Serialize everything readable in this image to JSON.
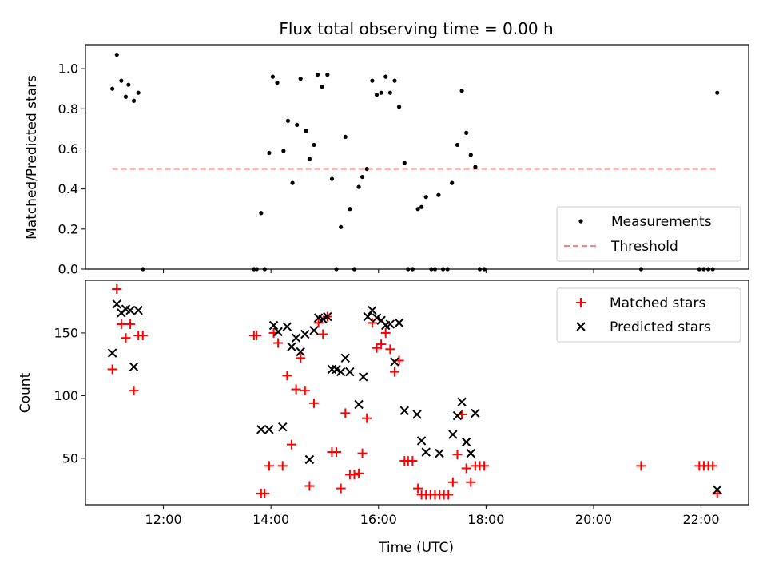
{
  "chart_data": [
    {
      "type": "scatter",
      "title": "Flux total observing time = 0.00 h",
      "xlabel": "",
      "ylabel": "Matched/Predicted stars",
      "xlim": [
        "10:33",
        "22:53"
      ],
      "ylim": [
        0.0,
        1.12
      ],
      "xticks": [
        "12:00",
        "14:00",
        "16:00",
        "18:00",
        "20:00",
        "22:00"
      ],
      "yticks": [
        "0.0",
        "0.2",
        "0.4",
        "0.6",
        "0.8",
        "1.0"
      ],
      "legend": {
        "position": "bottom-right",
        "entries": [
          "Measurements",
          "Threshold"
        ]
      },
      "colors": {
        "Measurements": "#000000",
        "Threshold": "#ff7f7f"
      },
      "series": [
        {
          "name": "Measurements",
          "points": [
            [
              "11:03",
              0.9
            ],
            [
              "11:08",
              1.07
            ],
            [
              "11:13",
              0.94
            ],
            [
              "11:18",
              0.86
            ],
            [
              "11:21",
              0.92
            ],
            [
              "11:27",
              0.84
            ],
            [
              "11:32",
              0.88
            ],
            [
              "11:37",
              0.0
            ],
            [
              "13:41",
              0.0
            ],
            [
              "13:44",
              0.0
            ],
            [
              "13:49",
              0.28
            ],
            [
              "13:53",
              0.0
            ],
            [
              "13:58",
              0.58
            ],
            [
              "14:02",
              0.96
            ],
            [
              "14:07",
              0.93
            ],
            [
              "14:14",
              0.59
            ],
            [
              "14:19",
              0.74
            ],
            [
              "14:24",
              0.43
            ],
            [
              "14:29",
              0.72
            ],
            [
              "14:33",
              0.95
            ],
            [
              "14:39",
              0.69
            ],
            [
              "14:43",
              0.55
            ],
            [
              "14:48",
              0.62
            ],
            [
              "14:52",
              0.97
            ],
            [
              "14:57",
              0.91
            ],
            [
              "15:03",
              0.97
            ],
            [
              "15:08",
              0.45
            ],
            [
              "15:13",
              0.0
            ],
            [
              "15:18",
              0.21
            ],
            [
              "15:23",
              0.66
            ],
            [
              "15:28",
              0.3
            ],
            [
              "15:33",
              0.0
            ],
            [
              "15:38",
              0.41
            ],
            [
              "15:42",
              0.46
            ],
            [
              "15:47",
              0.5
            ],
            [
              "15:53",
              0.94
            ],
            [
              "15:58",
              0.87
            ],
            [
              "16:03",
              0.88
            ],
            [
              "16:08",
              0.96
            ],
            [
              "16:13",
              0.88
            ],
            [
              "16:18",
              0.94
            ],
            [
              "16:23",
              0.81
            ],
            [
              "16:29",
              0.53
            ],
            [
              "16:33",
              0.0
            ],
            [
              "16:38",
              0.0
            ],
            [
              "16:44",
              0.3
            ],
            [
              "16:48",
              0.31
            ],
            [
              "16:53",
              0.36
            ],
            [
              "16:59",
              0.0
            ],
            [
              "17:03",
              0.0
            ],
            [
              "17:07",
              0.37
            ],
            [
              "17:12",
              0.0
            ],
            [
              "17:17",
              0.0
            ],
            [
              "17:22",
              0.43
            ],
            [
              "17:28",
              0.62
            ],
            [
              "17:33",
              0.89
            ],
            [
              "17:38",
              0.68
            ],
            [
              "17:43",
              0.57
            ],
            [
              "17:48",
              0.51
            ],
            [
              "17:53",
              0.0
            ],
            [
              "17:58",
              0.0
            ],
            [
              "20:53",
              0.0
            ],
            [
              "21:58",
              0.0
            ],
            [
              "22:03",
              0.0
            ],
            [
              "22:08",
              0.0
            ],
            [
              "22:13",
              0.0
            ],
            [
              "22:18",
              0.88
            ]
          ]
        },
        {
          "name": "Threshold",
          "type": "line",
          "points": [
            [
              "11:03",
              0.5
            ],
            [
              "22:18",
              0.5
            ]
          ]
        }
      ]
    },
    {
      "type": "scatter",
      "title": "",
      "xlabel": "Time (UTC)",
      "ylabel": "Count",
      "xlim": [
        "10:33",
        "22:53"
      ],
      "ylim": [
        13,
        192
      ],
      "xticks": [
        "12:00",
        "14:00",
        "16:00",
        "18:00",
        "20:00",
        "22:00"
      ],
      "yticks": [
        "50",
        "100",
        "150"
      ],
      "legend": {
        "position": "top-right",
        "entries": [
          "Matched stars",
          "Predicted stars"
        ]
      },
      "colors": {
        "Matched stars": "#ff0000",
        "Predicted stars": "#000000"
      },
      "series": [
        {
          "name": "Matched stars",
          "points": [
            [
              "11:03",
              121
            ],
            [
              "11:08",
              185
            ],
            [
              "11:13",
              157
            ],
            [
              "11:18",
              146
            ],
            [
              "11:23",
              157
            ],
            [
              "11:27",
              104
            ],
            [
              "11:32",
              148
            ],
            [
              "11:37",
              148
            ],
            [
              "13:41",
              148
            ],
            [
              "13:44",
              148
            ],
            [
              "13:49",
              22
            ],
            [
              "13:53",
              22
            ],
            [
              "13:58",
              44
            ],
            [
              "14:03",
              150
            ],
            [
              "14:08",
              142
            ],
            [
              "14:13",
              44
            ],
            [
              "14:18",
              116
            ],
            [
              "14:23",
              61
            ],
            [
              "14:28",
              105
            ],
            [
              "14:33",
              130
            ],
            [
              "14:38",
              104
            ],
            [
              "14:43",
              28
            ],
            [
              "14:48",
              94
            ],
            [
              "14:53",
              158
            ],
            [
              "14:58",
              149
            ],
            [
              "15:03",
              163
            ],
            [
              "15:08",
              55
            ],
            [
              "15:13",
              55
            ],
            [
              "15:18",
              26
            ],
            [
              "15:23",
              86
            ],
            [
              "15:28",
              37
            ],
            [
              "15:33",
              37
            ],
            [
              "15:38",
              38
            ],
            [
              "15:42",
              54
            ],
            [
              "15:47",
              82
            ],
            [
              "15:53",
              158
            ],
            [
              "15:58",
              138
            ],
            [
              "16:03",
              141
            ],
            [
              "16:08",
              150
            ],
            [
              "16:13",
              137
            ],
            [
              "16:18",
              119
            ],
            [
              "16:23",
              128
            ],
            [
              "16:29",
              48
            ],
            [
              "16:33",
              48
            ],
            [
              "16:38",
              48
            ],
            [
              "16:44",
              26
            ],
            [
              "16:48",
              21
            ],
            [
              "16:53",
              21
            ],
            [
              "16:58",
              21
            ],
            [
              "17:03",
              21
            ],
            [
              "17:08",
              21
            ],
            [
              "17:13",
              21
            ],
            [
              "17:18",
              21
            ],
            [
              "17:23",
              31
            ],
            [
              "17:28",
              53
            ],
            [
              "17:33",
              85
            ],
            [
              "17:38",
              42
            ],
            [
              "17:43",
              31
            ],
            [
              "17:48",
              44
            ],
            [
              "17:53",
              44
            ],
            [
              "17:58",
              44
            ],
            [
              "20:53",
              44
            ],
            [
              "21:58",
              44
            ],
            [
              "22:03",
              44
            ],
            [
              "22:08",
              44
            ],
            [
              "22:13",
              44
            ],
            [
              "22:18",
              22
            ]
          ]
        },
        {
          "name": "Predicted stars",
          "points": [
            [
              "11:03",
              134
            ],
            [
              "11:08",
              173
            ],
            [
              "11:13",
              166
            ],
            [
              "11:18",
              169
            ],
            [
              "11:23",
              168
            ],
            [
              "11:27",
              123
            ],
            [
              "11:32",
              168
            ],
            [
              "13:49",
              73
            ],
            [
              "13:58",
              73
            ],
            [
              "14:03",
              156
            ],
            [
              "14:08",
              151
            ],
            [
              "14:13",
              75
            ],
            [
              "14:18",
              155
            ],
            [
              "14:23",
              139
            ],
            [
              "14:28",
              146
            ],
            [
              "14:33",
              135
            ],
            [
              "14:38",
              149
            ],
            [
              "14:43",
              49
            ],
            [
              "14:48",
              152
            ],
            [
              "14:53",
              162
            ],
            [
              "14:58",
              161
            ],
            [
              "15:03",
              163
            ],
            [
              "15:08",
              121
            ],
            [
              "15:13",
              121
            ],
            [
              "15:18",
              119
            ],
            [
              "15:23",
              130
            ],
            [
              "15:28",
              119
            ],
            [
              "15:38",
              93
            ],
            [
              "15:43",
              115
            ],
            [
              "15:48",
              163
            ],
            [
              "15:53",
              168
            ],
            [
              "15:58",
              162
            ],
            [
              "16:03",
              160
            ],
            [
              "16:08",
              156
            ],
            [
              "16:13",
              157
            ],
            [
              "16:18",
              127
            ],
            [
              "16:23",
              158
            ],
            [
              "16:29",
              88
            ],
            [
              "16:43",
              85
            ],
            [
              "16:48",
              64
            ],
            [
              "16:53",
              55
            ],
            [
              "17:08",
              54
            ],
            [
              "17:23",
              69
            ],
            [
              "17:28",
              84
            ],
            [
              "17:33",
              95
            ],
            [
              "17:38",
              63
            ],
            [
              "17:43",
              54
            ],
            [
              "17:48",
              86
            ],
            [
              "22:18",
              25
            ]
          ]
        }
      ]
    }
  ]
}
